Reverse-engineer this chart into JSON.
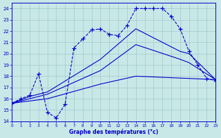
{
  "xlabel": "Graphe des températures (°c)",
  "xlim": [
    0,
    23
  ],
  "ylim": [
    14,
    24.5
  ],
  "xticks": [
    0,
    1,
    2,
    3,
    4,
    5,
    6,
    7,
    8,
    9,
    10,
    11,
    12,
    13,
    14,
    15,
    16,
    17,
    18,
    19,
    20,
    21,
    22,
    23
  ],
  "yticks": [
    14,
    15,
    16,
    17,
    18,
    19,
    20,
    21,
    22,
    23,
    24
  ],
  "bg_color": "#c8e8e8",
  "grid_color": "#a0c8c8",
  "line_color": "#0000cc",
  "main_line": {
    "x": [
      0,
      1,
      2,
      3,
      4,
      5,
      6,
      7,
      8,
      9,
      10,
      11,
      12,
      13,
      14,
      15,
      16,
      17,
      18,
      19,
      20,
      21,
      22,
      23
    ],
    "y": [
      15.6,
      16.0,
      16.3,
      18.2,
      14.8,
      14.3,
      15.5,
      20.5,
      21.3,
      22.1,
      22.2,
      21.7,
      21.6,
      22.5,
      24.0,
      24.0,
      24.0,
      24.0,
      23.3,
      22.2,
      20.2,
      19.0,
      17.8,
      17.6
    ]
  },
  "smooth_lines": [
    {
      "x": [
        0,
        2,
        4,
        10,
        14,
        19,
        20,
        23
      ],
      "y": [
        15.6,
        16.2,
        16.6,
        19.5,
        22.2,
        20.2,
        20.0,
        17.7
      ]
    },
    {
      "x": [
        0,
        4,
        10,
        14,
        19,
        20,
        23
      ],
      "y": [
        15.6,
        16.4,
        18.5,
        20.8,
        19.5,
        19.2,
        17.7
      ]
    },
    {
      "x": [
        0,
        4,
        10,
        14,
        23
      ],
      "y": [
        15.6,
        16.0,
        17.3,
        18.0,
        17.7
      ]
    }
  ]
}
